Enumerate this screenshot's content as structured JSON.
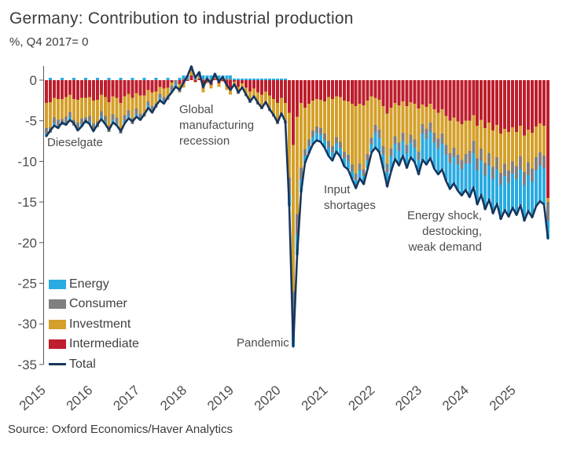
{
  "title": "Germany: Contribution to industrial production",
  "subtitle": "%, Q4 2017= 0",
  "source": "Source: Oxford Economics/Haver Analytics",
  "chart_data": {
    "type": "bar",
    "stacked": true,
    "x_unit": "month",
    "x_start": "2015-01",
    "x_end": "2025-09",
    "x_tick_labels": [
      "2015",
      "2016",
      "2017",
      "2018",
      "2019",
      "2020",
      "2021",
      "2022",
      "2023",
      "2024",
      "2025"
    ],
    "y_ticks": [
      0,
      -5,
      -10,
      -15,
      -20,
      -25,
      -30,
      -35
    ],
    "ylim": [
      -35,
      2
    ],
    "grid": false,
    "legend_position": "inside-bottom-left",
    "series": [
      {
        "name": "Energy",
        "color": "#29ABE2",
        "values": [
          -0.3,
          0.3,
          -0.3,
          -0.3,
          0.3,
          -0.3,
          -0.3,
          0.3,
          -0.3,
          -0.3,
          0.3,
          -0.3,
          -0.3,
          0.3,
          -0.3,
          -0.3,
          0.3,
          -0.3,
          -0.3,
          0.3,
          -0.3,
          -0.3,
          0.3,
          -0.3,
          -0.3,
          0.3,
          -0.3,
          -0.3,
          0.3,
          -0.3,
          -0.3,
          0.3,
          -0.3,
          -0.3,
          0.3,
          0.4,
          0.4,
          0.4,
          0.4,
          0.4,
          0.4,
          0.4,
          0.4,
          0.4,
          0.4,
          0.4,
          0.4,
          0.4,
          0.2,
          0.2,
          0.2,
          0.2,
          0.2,
          0.2,
          0.2,
          0.2,
          0.2,
          0.2,
          0.2,
          0.2,
          0.2,
          0.2,
          -1.5,
          -3.3,
          -2.5,
          -1.6,
          -0.9,
          -0.9,
          -0.9,
          -0.9,
          -0.9,
          -0.9,
          -1.0,
          -1.0,
          -1.0,
          -1.0,
          -1.0,
          -1.0,
          -1.0,
          -1.0,
          -1.0,
          -1.0,
          -1.0,
          -1.0,
          -1.8,
          -1.8,
          -1.8,
          -1.8,
          -1.8,
          -1.8,
          -1.8,
          -1.8,
          -1.8,
          -1.8,
          -1.8,
          -1.8,
          -3.2,
          -3.2,
          -3.2,
          -3.2,
          -3.2,
          -3.2,
          -3.2,
          -3.2,
          -3.2,
          -3.2,
          -3.2,
          -3.2,
          -4.2,
          -4.2,
          -4.2,
          -4.2,
          -4.2,
          -4.2,
          -4.2,
          -4.2,
          -4.2,
          -4.2,
          -4.2,
          -4.2,
          -4.4,
          -4.4,
          -4.4,
          -4.4,
          -4.4,
          -4.4,
          -4.4,
          -4.4,
          -2.2
        ]
      },
      {
        "name": "Consumer",
        "color": "#808080",
        "values": [
          -0.7,
          -0.7,
          -0.7,
          -0.7,
          -0.7,
          -0.7,
          -0.7,
          -0.7,
          -0.7,
          -0.7,
          -0.7,
          -0.7,
          -0.7,
          -0.7,
          -0.7,
          -0.7,
          -0.7,
          -0.7,
          -0.7,
          -0.7,
          -0.7,
          -0.7,
          -0.7,
          -0.7,
          -0.5,
          -0.5,
          -0.5,
          -0.5,
          -0.5,
          -0.5,
          -0.5,
          -0.5,
          -0.5,
          -0.5,
          -0.5,
          0.2,
          0.2,
          0.2,
          0.2,
          0.2,
          0.2,
          0.2,
          0.2,
          0.2,
          0.2,
          0.2,
          0.2,
          0.2,
          -0.3,
          -0.3,
          -0.3,
          -0.3,
          -0.3,
          -0.3,
          -0.3,
          -0.3,
          -0.3,
          -0.3,
          -0.3,
          -0.3,
          -0.3,
          -0.3,
          -2.0,
          -3.5,
          -2.5,
          -1.4,
          -0.8,
          -0.8,
          -0.8,
          -0.8,
          -0.8,
          -0.8,
          -0.8,
          -0.8,
          -0.8,
          -0.8,
          -0.8,
          -0.8,
          -0.8,
          -0.8,
          -0.8,
          -0.8,
          -0.8,
          -0.8,
          -1.0,
          -1.0,
          -1.0,
          -1.0,
          -1.0,
          -1.0,
          -1.0,
          -1.0,
          -1.0,
          -1.0,
          -1.0,
          -1.0,
          -1.2,
          -1.2,
          -1.2,
          -1.2,
          -1.2,
          -1.2,
          -1.2,
          -1.2,
          -1.2,
          -1.2,
          -1.2,
          -1.2,
          -1.5,
          -1.5,
          -1.5,
          -1.5,
          -1.5,
          -1.5,
          -1.5,
          -1.5,
          -1.5,
          -1.5,
          -1.5,
          -1.5,
          -1.6,
          -1.6,
          -1.6,
          -1.6,
          -1.6,
          -1.6,
          -1.6,
          -1.6,
          -2.3
        ]
      },
      {
        "name": "Investment",
        "color": "#D4A02A",
        "values": [
          -3.1,
          -3.1,
          -2.4,
          -2.6,
          -2.5,
          -2.4,
          -2.1,
          -2.6,
          -2.8,
          -2.5,
          -2.4,
          -2.3,
          -2.8,
          -2.7,
          -2.0,
          -2.3,
          -3.0,
          -2.2,
          -2.4,
          -3.1,
          -2.3,
          -2.0,
          -2.5,
          -1.9,
          -2.2,
          -2.1,
          -1.4,
          -1.7,
          -1.5,
          -0.9,
          -1.1,
          -1.0,
          -0.4,
          0.0,
          -0.5,
          -0.5,
          0.0,
          0.5,
          -0.1,
          0.2,
          -0.7,
          -0.2,
          -0.4,
          0.1,
          -0.4,
          -0.1,
          -0.5,
          -0.8,
          -0.2,
          -0.6,
          -0.4,
          -0.8,
          -1.1,
          -0.9,
          -1.2,
          -1.5,
          -1.2,
          -1.6,
          -1.9,
          -2.3,
          -1.8,
          -2.2,
          -8.0,
          -18.0,
          -12.0,
          -8.0,
          -5.1,
          -4.4,
          -3.7,
          -3.4,
          -3.5,
          -4.0,
          -5.4,
          -5.8,
          -5.0,
          -5.5,
          -6.3,
          -6.6,
          -7.5,
          -8.3,
          -7.4,
          -7.9,
          -6.6,
          -5.1,
          -3.3,
          -3.7,
          -4.9,
          -6.2,
          -5.0,
          -4.1,
          -4.6,
          -3.9,
          -4.8,
          -4.0,
          -4.4,
          -5.3,
          -2.4,
          -2.7,
          -2.3,
          -2.9,
          -3.2,
          -3.0,
          -3.6,
          -4.0,
          -3.7,
          -4.1,
          -4.4,
          -4.1,
          -3.7,
          -3.2,
          -4.0,
          -3.5,
          -4.3,
          -3.8,
          -4.5,
          -4.0,
          -4.8,
          -4.3,
          -4.7,
          -4.2,
          -4.2,
          -3.8,
          -4.5,
          -4.0,
          -4.4,
          -3.8,
          -3.6,
          -3.7,
          -0.5
        ]
      },
      {
        "name": "Intermediate",
        "color": "#BE1E2D",
        "values": [
          -2.8,
          -2.7,
          -2.2,
          -2.3,
          -2.3,
          -2.1,
          -1.8,
          -2.3,
          -2.4,
          -2.2,
          -2.2,
          -2.1,
          -2.5,
          -2.4,
          -1.8,
          -2.1,
          -2.7,
          -2.0,
          -2.2,
          -2.8,
          -2.0,
          -1.7,
          -2.2,
          -1.6,
          -1.9,
          -1.9,
          -1.2,
          -1.5,
          -1.4,
          -0.8,
          -1.0,
          -0.9,
          -0.3,
          0.0,
          -0.5,
          -0.4,
          -0.1,
          0.6,
          -0.2,
          0.2,
          -0.8,
          -0.2,
          -0.6,
          0.1,
          -0.4,
          -0.1,
          -0.7,
          -1.0,
          -0.2,
          -0.8,
          -0.4,
          -0.9,
          -1.4,
          -1.0,
          -1.5,
          -1.8,
          -1.4,
          -1.9,
          -2.3,
          -2.8,
          -2.2,
          -2.8,
          -4.0,
          -8.0,
          -4.5,
          -2.8,
          -3.4,
          -2.9,
          -2.5,
          -2.3,
          -2.4,
          -2.6,
          -2.1,
          -2.3,
          -2.0,
          -2.1,
          -2.5,
          -2.6,
          -2.9,
          -3.2,
          -2.9,
          -3.1,
          -2.5,
          -2.0,
          -2.2,
          -2.4,
          -3.2,
          -4.1,
          -3.4,
          -2.8,
          -3.1,
          -2.6,
          -3.2,
          -2.7,
          -2.9,
          -3.5,
          -3.0,
          -3.3,
          -2.9,
          -3.6,
          -4.0,
          -3.6,
          -4.4,
          -5.0,
          -4.6,
          -5.1,
          -5.4,
          -5.0,
          -5.0,
          -4.3,
          -5.6,
          -4.9,
          -5.9,
          -5.2,
          -6.2,
          -5.5,
          -6.6,
          -6.0,
          -6.4,
          -5.8,
          -6.4,
          -5.6,
          -6.8,
          -6.1,
          -6.5,
          -5.7,
          -5.3,
          -5.6,
          -14.5
        ]
      }
    ],
    "line_series": {
      "name": "Total",
      "color": "#17365D",
      "values": [
        -6.9,
        -6.2,
        -5.6,
        -5.9,
        -5.2,
        -5.5,
        -4.9,
        -5.3,
        -6.2,
        -5.7,
        -5.0,
        -5.4,
        -6.3,
        -5.5,
        -4.8,
        -5.4,
        -6.1,
        -5.2,
        -5.6,
        -6.3,
        -5.3,
        -4.7,
        -5.1,
        -4.5,
        -4.9,
        -4.2,
        -3.4,
        -4.0,
        -3.1,
        -2.5,
        -2.9,
        -2.1,
        -1.5,
        -0.8,
        -1.2,
        -0.3,
        0.5,
        1.7,
        0.3,
        1.0,
        -0.9,
        0.2,
        -0.4,
        0.8,
        -0.2,
        0.4,
        -0.6,
        -1.2,
        -0.5,
        -1.5,
        -0.9,
        -1.8,
        -2.6,
        -2.0,
        -2.8,
        -3.4,
        -2.7,
        -3.6,
        -4.3,
        -5.2,
        -4.1,
        -5.1,
        -15.5,
        -32.8,
        -21.5,
        -13.8,
        -10.2,
        -9.0,
        -7.9,
        -7.4,
        -7.6,
        -8.3,
        -9.3,
        -9.9,
        -8.8,
        -9.4,
        -10.6,
        -11.0,
        -12.2,
        -13.3,
        -12.1,
        -12.8,
        -10.9,
        -8.9,
        -8.3,
        -8.9,
        -10.9,
        -13.1,
        -11.2,
        -9.7,
        -10.5,
        -9.3,
        -10.8,
        -9.5,
        -10.1,
        -11.6,
        -9.8,
        -10.4,
        -9.6,
        -10.9,
        -11.6,
        -11.0,
        -12.4,
        -13.4,
        -12.7,
        -13.6,
        -14.2,
        -13.5,
        -14.4,
        -13.2,
        -15.3,
        -14.1,
        -15.9,
        -14.7,
        -16.4,
        -15.2,
        -17.1,
        -16.0,
        -16.8,
        -15.7,
        -16.6,
        -15.4,
        -17.3,
        -16.1,
        -16.9,
        -15.5,
        -14.9,
        -15.3,
        -19.5
      ]
    },
    "annotations": [
      {
        "id": "dieselgate",
        "text": "Dieselgate"
      },
      {
        "id": "global-recession",
        "text": "Global\nmanufacturing\nrecession"
      },
      {
        "id": "pandemic",
        "text": "Pandemic"
      },
      {
        "id": "input-shortages",
        "text": "Input\nshortages"
      },
      {
        "id": "energy-shock",
        "text": "Energy shock,\ndestocking,\nweak demand"
      }
    ]
  }
}
